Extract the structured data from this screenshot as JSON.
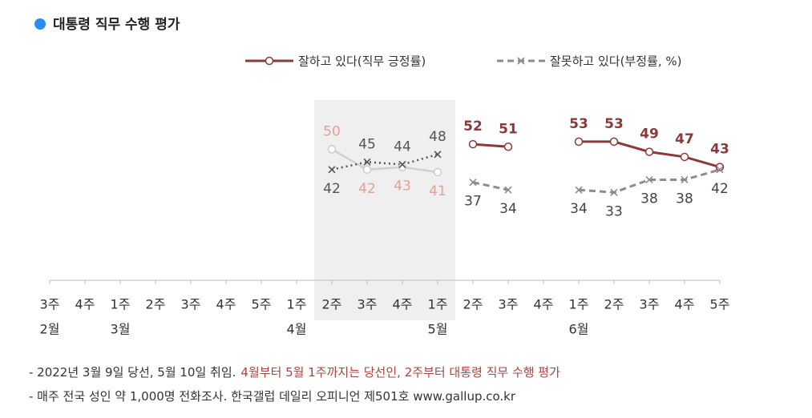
{
  "chart_data": {
    "type": "line",
    "title": "대통령 직무 수행 평가",
    "categories": [
      "3주",
      "4주",
      "1주",
      "2주",
      "3주",
      "4주",
      "5주",
      "1주",
      "2주",
      "3주",
      "4주",
      "1주",
      "2주",
      "3주",
      "4주",
      "1주",
      "2주",
      "3주",
      "4주",
      "5주"
    ],
    "months": [
      "2월",
      null,
      "3월",
      null,
      null,
      null,
      null,
      "4월",
      null,
      null,
      null,
      "5월",
      null,
      null,
      null,
      "6월",
      null,
      null,
      null,
      null
    ],
    "shade": [
      8,
      11
    ],
    "ylim": [
      0,
      70
    ],
    "series": [
      {
        "name": "잘하고 있다(직무 긍정률)",
        "color": "#8b3a3a",
        "shaded_color": "#d0d0d0",
        "shaded_label_color": "#e3a096",
        "dash": "solid",
        "marker": "circle",
        "values": [
          null,
          null,
          null,
          null,
          null,
          null,
          null,
          null,
          50,
          42,
          43,
          41,
          52,
          51,
          null,
          53,
          53,
          49,
          47,
          43
        ]
      },
      {
        "name": "잘못하고 있다(부정률, %)",
        "color": "#8c8c8c",
        "shaded_color": "#555555",
        "shaded_label_color": "#555555",
        "dash": "dashed",
        "marker": "x",
        "values": [
          null,
          null,
          null,
          null,
          null,
          null,
          null,
          null,
          42,
          45,
          44,
          48,
          37,
          34,
          null,
          34,
          33,
          38,
          38,
          42
        ]
      }
    ],
    "notes": [
      {
        "text": "- 2022년 3월 9일 당선, 5월 10일 취임.",
        "highlight": "4월부터 5월 1주까지는 당선인, 2주부터 대통령 직무 수행 평가"
      },
      {
        "text": "- 매주 전국 성인 약 1,000명 전화조사. 한국갤럽 데일리 오피니언 제501호 www.gallup.co.kr"
      }
    ]
  }
}
